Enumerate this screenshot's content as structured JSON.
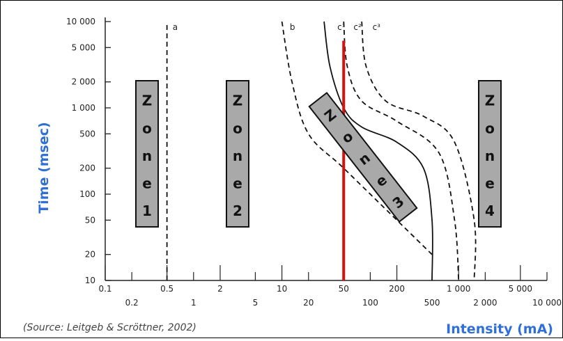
{
  "chart_data": {
    "type": "line",
    "title": "",
    "ylabel": "Time (msec)",
    "xlabel": "Intensity (mA)",
    "source": "(Source: Leitgeb & Scröttner, 2002)",
    "x_scale": "log",
    "y_scale": "log",
    "xlim": [
      0.1,
      10000
    ],
    "ylim": [
      10,
      10000
    ],
    "x_ticks_upper": [
      "0.1",
      "0.5",
      "2",
      "10",
      "50",
      "200",
      "1 000",
      "5 000"
    ],
    "x_ticks_upper_values": [
      0.1,
      0.5,
      2,
      10,
      50,
      200,
      1000,
      5000
    ],
    "x_ticks_lower": [
      "0.2",
      "1",
      "5",
      "20",
      "100",
      "500",
      "2 000",
      "10 000"
    ],
    "x_ticks_lower_values": [
      0.2,
      1,
      5,
      20,
      100,
      500,
      2000,
      10000
    ],
    "y_ticks": [
      "10",
      "20",
      "50",
      "100",
      "200",
      "500",
      "1 000",
      "2 000",
      "5 000",
      "10 000"
    ],
    "y_ticks_values": [
      10,
      20,
      50,
      100,
      200,
      500,
      1000,
      2000,
      5000,
      10000
    ],
    "series": [
      {
        "name": "a",
        "style": "dashed",
        "points": [
          [
            0.5,
            10
          ],
          [
            0.5,
            10000
          ]
        ]
      },
      {
        "name": "b",
        "style": "dashed",
        "points": [
          [
            10,
            10000
          ],
          [
            13,
            2000
          ],
          [
            20,
            500
          ],
          [
            50,
            200
          ],
          [
            200,
            50
          ],
          [
            500,
            20
          ]
        ]
      },
      {
        "name": "c1",
        "style": "solid",
        "points": [
          [
            30,
            10000
          ],
          [
            35,
            3000
          ],
          [
            50,
            1000
          ],
          [
            80,
            600
          ],
          [
            200,
            400
          ],
          [
            400,
            200
          ],
          [
            500,
            50
          ],
          [
            500,
            10
          ]
        ]
      },
      {
        "name": "c2",
        "style": "dashed",
        "points": [
          [
            50,
            10000
          ],
          [
            55,
            3000
          ],
          [
            80,
            1200
          ],
          [
            200,
            700
          ],
          [
            600,
            300
          ],
          [
            900,
            50
          ],
          [
            1000,
            10
          ]
        ]
      },
      {
        "name": "c3",
        "style": "dashed",
        "points": [
          [
            80,
            10000
          ],
          [
            90,
            3000
          ],
          [
            150,
            1200
          ],
          [
            400,
            800
          ],
          [
            900,
            400
          ],
          [
            1500,
            50
          ],
          [
            1500,
            10
          ]
        ]
      }
    ],
    "curve_labels": [
      "a",
      "b",
      "c¹",
      "c²",
      "c³"
    ],
    "marker_line": {
      "x": 50,
      "y_from": 10,
      "y_to": 6000,
      "color": "#d81010"
    },
    "zones": [
      {
        "name": "Zone 1",
        "letters": [
          "Z",
          "o",
          "n",
          "e",
          "1"
        ]
      },
      {
        "name": "Zone 2",
        "letters": [
          "Z",
          "o",
          "n",
          "e",
          "2"
        ]
      },
      {
        "name": "Zone 3",
        "letters": [
          "Z",
          "o",
          "n",
          "e",
          "3"
        ]
      },
      {
        "name": "Zone 4",
        "letters": [
          "Z",
          "o",
          "n",
          "e",
          "4"
        ]
      }
    ],
    "colors": {
      "axis_title": "#2f6fd6",
      "marker": "#d81010",
      "zone_box": "#a9a9a9"
    }
  }
}
